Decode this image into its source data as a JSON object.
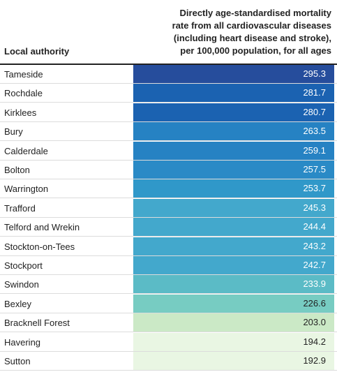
{
  "chart_data": {
    "type": "table",
    "columns": [
      "Local authority",
      "Directly age-standardised mortality rate from all cardiovascular diseases (including heart disease and stroke), per 100,000 population, for all ages"
    ],
    "header_value_lines": [
      "Directly age-standardised mortality",
      "rate from all cardiovascular diseases",
      "(including heart disease and stroke),",
      "per 100,000 population, for all ages"
    ],
    "rows": [
      {
        "authority": "Tameside",
        "value": 295.3,
        "label": "295.3",
        "color": "#264d9c"
      },
      {
        "authority": "Rochdale",
        "value": 281.7,
        "label": "281.7",
        "color": "#1b62b1"
      },
      {
        "authority": "Kirklees",
        "value": 280.7,
        "label": "280.7",
        "color": "#1b62b1"
      },
      {
        "authority": "Bury",
        "value": 263.5,
        "label": "263.5",
        "color": "#2682c3"
      },
      {
        "authority": "Calderdale",
        "value": 259.1,
        "label": "259.1",
        "color": "#2682c3"
      },
      {
        "authority": "Bolton",
        "value": 257.5,
        "label": "257.5",
        "color": "#2a8ac6"
      },
      {
        "authority": "Warrington",
        "value": 253.7,
        "label": "253.7",
        "color": "#3098c9"
      },
      {
        "authority": "Trafford",
        "value": 245.3,
        "label": "245.3",
        "color": "#43a8cc"
      },
      {
        "authority": "Telford and Wrekin",
        "value": 244.4,
        "label": "244.4",
        "color": "#43a8cc"
      },
      {
        "authority": "Stockton-on-Tees",
        "value": 243.2,
        "label": "243.2",
        "color": "#43a8cc"
      },
      {
        "authority": "Stockport",
        "value": 242.7,
        "label": "242.7",
        "color": "#43a8cc"
      },
      {
        "authority": "Swindon",
        "value": 233.9,
        "label": "233.9",
        "color": "#5bbbc6"
      },
      {
        "authority": "Bexley",
        "value": 226.6,
        "label": "226.6",
        "color": "#77ccc2"
      },
      {
        "authority": "Bracknell Forest",
        "value": 203.0,
        "label": "203.0",
        "color": "#cbe9c6"
      },
      {
        "authority": "Havering",
        "value": 194.2,
        "label": "194.2",
        "color": "#e9f6e3"
      },
      {
        "authority": "Sutton",
        "value": 192.9,
        "label": "192.9",
        "color": "#e9f6e3"
      }
    ]
  }
}
